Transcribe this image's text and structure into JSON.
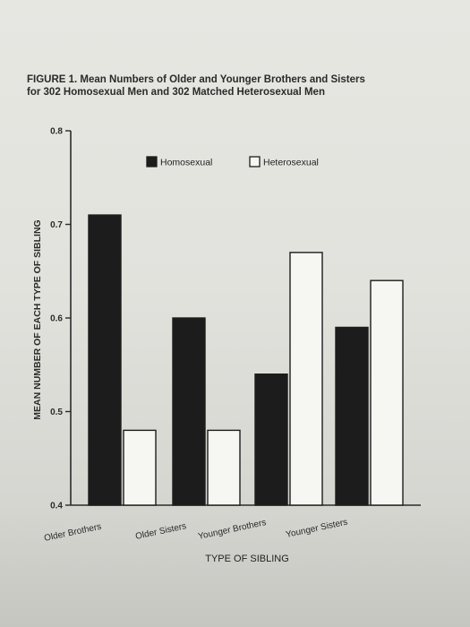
{
  "figure": {
    "caption_line1": "FIGURE 1. Mean Numbers of Older and Younger Brothers and Sisters",
    "caption_line2": "for 302 Homosexual Men and 302 Matched Heterosexual Men"
  },
  "chart_data": {
    "type": "bar",
    "title": "",
    "xlabel": "TYPE OF SIBLING",
    "ylabel": "MEAN NUMBER OF EACH TYPE OF SIBLING",
    "categories": [
      "Older Brothers",
      "Older Sisters",
      "Younger Brothers",
      "Younger Sisters"
    ],
    "series": [
      {
        "name": "Homosexual",
        "values": [
          0.71,
          0.6,
          0.54,
          0.59
        ],
        "color": "#1c1c1c"
      },
      {
        "name": "Heterosexual",
        "values": [
          0.48,
          0.48,
          0.67,
          0.64
        ],
        "color": "#f6f6f3"
      }
    ],
    "ylim": [
      0.4,
      0.8
    ],
    "yticks": [
      "0.4",
      "0.5",
      "0.6",
      "0.7",
      "0.8"
    ],
    "grid": false,
    "legend_position": "top"
  }
}
